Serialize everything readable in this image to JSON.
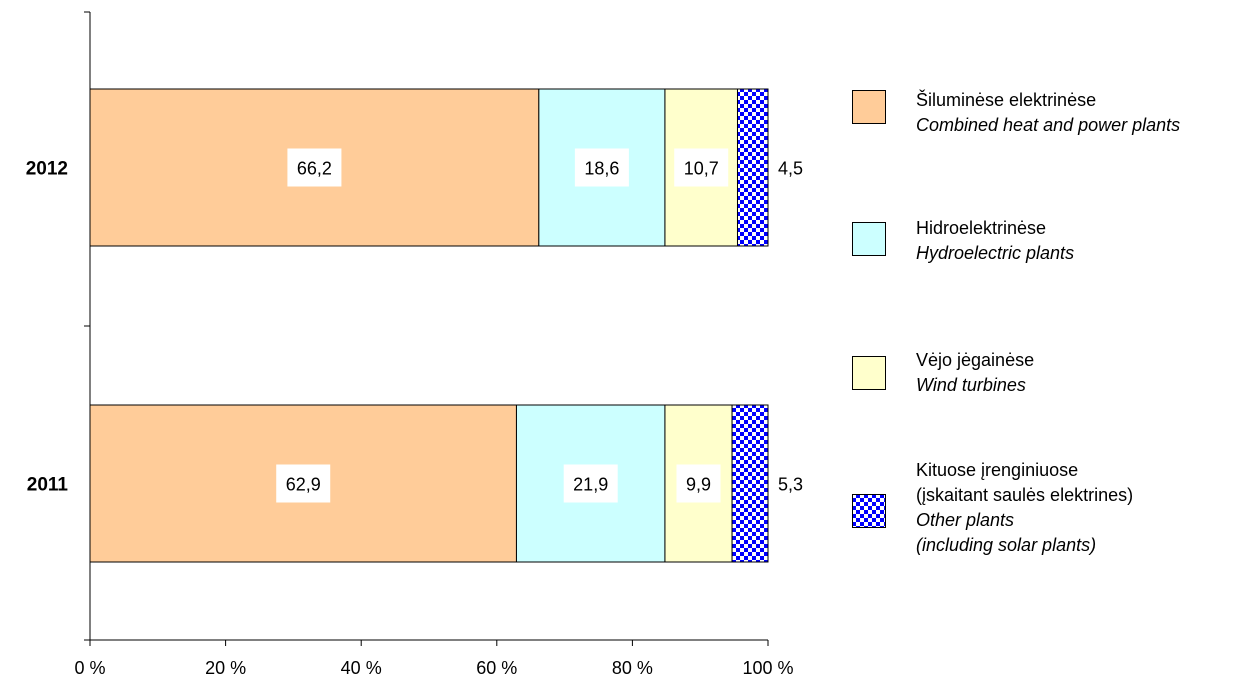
{
  "chart_data": {
    "type": "bar",
    "orientation": "horizontal",
    "stacked": true,
    "percent": true,
    "categories": [
      "2012",
      "2011"
    ],
    "series": [
      {
        "name": "Šiluminėse elektrinėse",
        "name_en": "Combined heat and power plants",
        "values": [
          66.2,
          62.9
        ],
        "labels": [
          "66,2",
          "62,9"
        ],
        "color": "#FFCC99"
      },
      {
        "name": "Hidroelektrinėse",
        "name_en": "Hydroelectric plants",
        "values": [
          18.6,
          21.9
        ],
        "labels": [
          "18,6",
          "21,9"
        ],
        "color": "#CCFFFF"
      },
      {
        "name": "Vėjo jėgainėse",
        "name_en": "Wind turbines",
        "values": [
          10.7,
          9.9
        ],
        "labels": [
          "10,7",
          "9,9"
        ],
        "color": "#FFFFCC"
      },
      {
        "name": "Kituose įrenginiuose",
        "name_line2": "(įskaitant saulės elektrines)",
        "name_en": "Other plants",
        "name_en_line2": "(including solar plants)",
        "values": [
          4.5,
          5.3
        ],
        "labels": [
          "4,5",
          "5,3"
        ],
        "color": "#0000FF",
        "pattern": "checker"
      }
    ],
    "xlim": [
      0,
      100
    ],
    "x_ticks": [
      "0 %",
      "20 %",
      "40 %",
      "60 %",
      "80 %",
      "100 %"
    ],
    "grid": false,
    "legend_position": "right"
  }
}
